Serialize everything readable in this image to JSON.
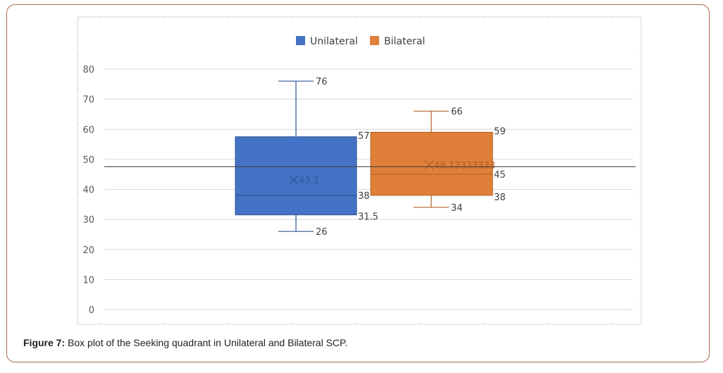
{
  "caption": {
    "label": "Figure 7:",
    "text": "Box plot of the Seeking quadrant in Unilateral and Bilateral SCP."
  },
  "chart_data": {
    "type": "box",
    "ylim": [
      0,
      80
    ],
    "yticks": [
      "0",
      "10",
      "20",
      "30",
      "40",
      "50",
      "60",
      "70",
      "80"
    ],
    "grid": true,
    "legend_position": "top",
    "reference_line": 47.5,
    "series": [
      {
        "name": "Unilateral",
        "color": "#4472c4",
        "min": 26,
        "q1": 31.5,
        "median": 38,
        "q3": 57.5,
        "max": 76,
        "mean": 43.2,
        "labels": {
          "max": "76",
          "q3": "57.5",
          "mean": "43.2",
          "median": "38",
          "q1": "31.5",
          "min": "26"
        }
      },
      {
        "name": "Bilateral",
        "color": "#e07f3a",
        "min": 34,
        "q1": 38,
        "median": 45,
        "q3": 59,
        "max": 66,
        "mean": 48.13333333,
        "labels": {
          "max": "66",
          "q3": "59",
          "mean": "48.13333333",
          "median": "45",
          "q1": "38",
          "min": "34"
        }
      }
    ]
  }
}
